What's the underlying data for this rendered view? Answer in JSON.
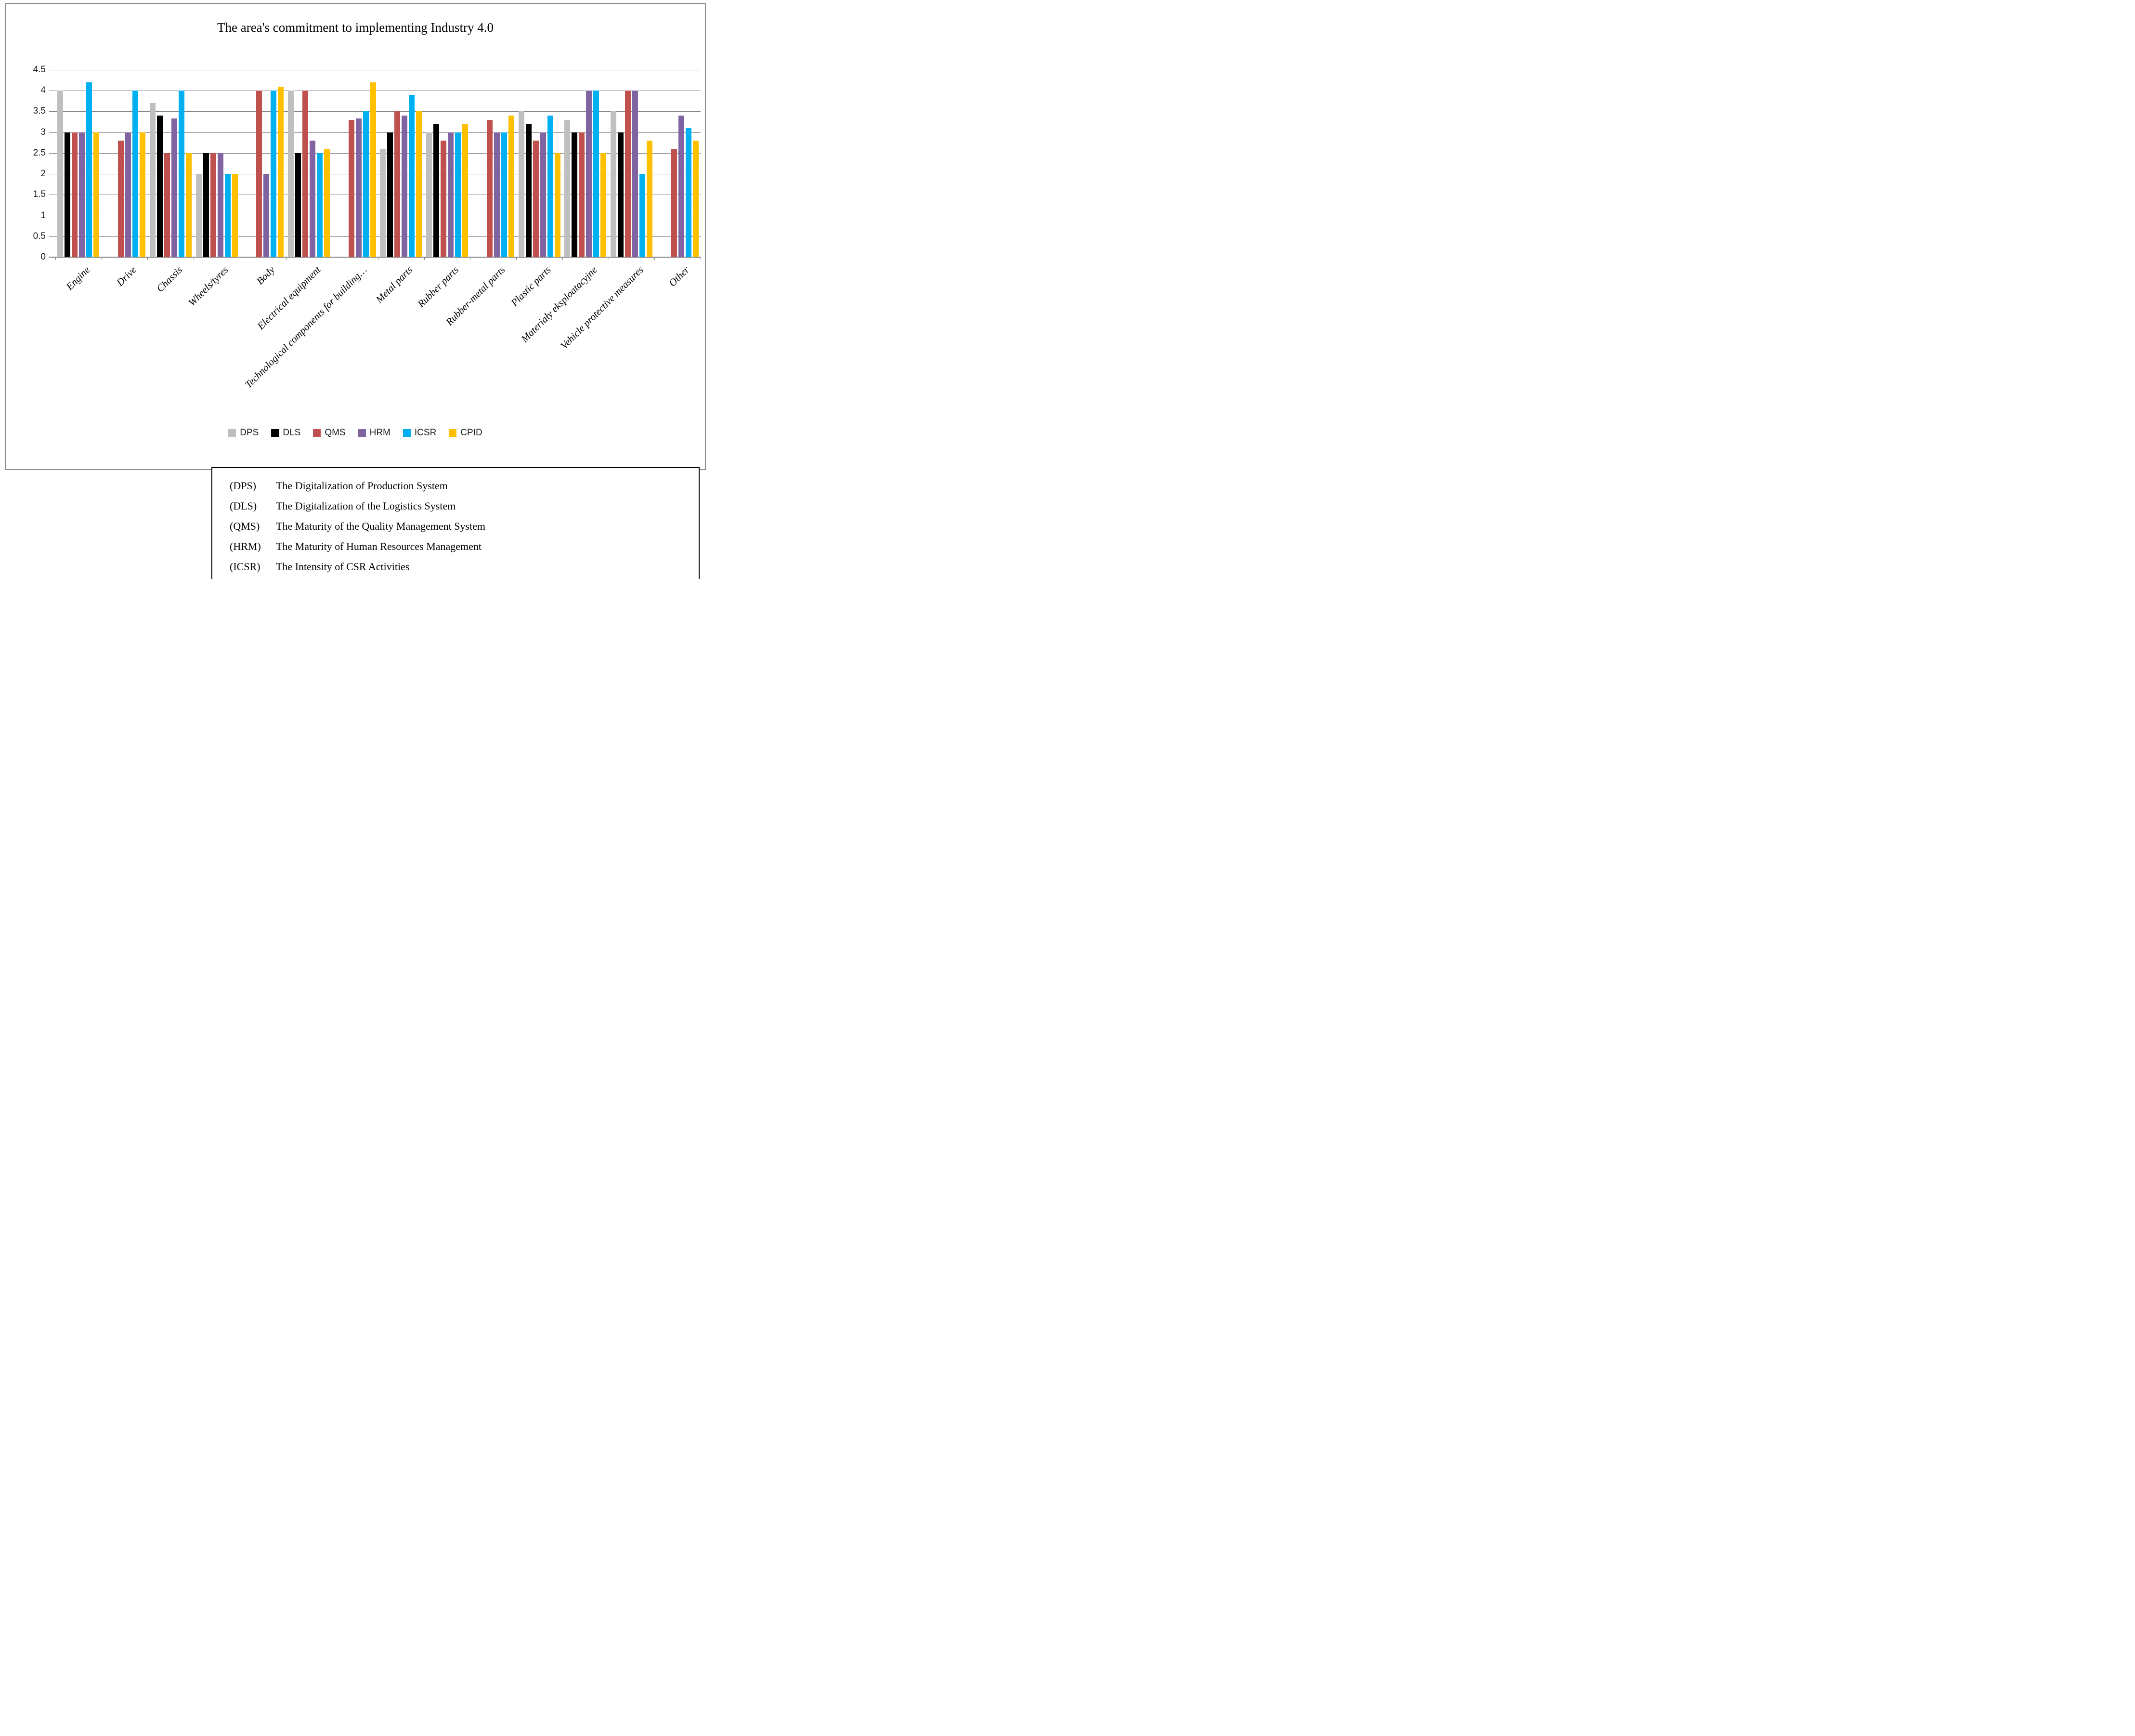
{
  "chart_data": {
    "type": "bar",
    "title": "The area's commitment to implementing Industry 4.0",
    "categories": [
      "Engine",
      "Drive",
      "Chassis",
      "Wheels/tyres",
      "Body",
      "Electrical equipment",
      "Technological components for building…",
      "Metal parts",
      "Rubber parts",
      "Rubber-metal parts",
      "Plastic parts",
      "Materiały eksploatacyjne",
      "Vehicle protective measures",
      "Other"
    ],
    "series": [
      {
        "name": "DPS",
        "color": "#bfbfbf",
        "values": [
          4,
          0,
          3.7,
          2,
          0,
          4,
          0,
          2.6,
          3,
          0,
          3.5,
          3.3,
          3.5,
          0
        ]
      },
      {
        "name": "DLS",
        "color": "#000000",
        "values": [
          3,
          0,
          3.4,
          2.5,
          0,
          2.5,
          0,
          3,
          3.2,
          0,
          3.2,
          3,
          3,
          0
        ]
      },
      {
        "name": "QMS",
        "color": "#c0504d",
        "values": [
          3,
          2.8,
          2.5,
          2.5,
          4,
          4,
          3.3,
          3.5,
          2.8,
          3.3,
          2.8,
          3,
          4,
          2.6
        ]
      },
      {
        "name": "HRM",
        "color": "#8064a2",
        "values": [
          3,
          3,
          3.33,
          2.5,
          2,
          2.8,
          3.33,
          3.4,
          3,
          3,
          3,
          4,
          4,
          3.4
        ]
      },
      {
        "name": "ICSR",
        "color": "#00b0f0",
        "values": [
          4.2,
          4,
          4,
          2,
          4,
          2.5,
          3.5,
          3.9,
          3,
          3,
          3.4,
          4,
          2,
          3.1
        ]
      },
      {
        "name": "CPID",
        "color": "#ffc000",
        "values": [
          3,
          3,
          2.5,
          2,
          4.1,
          2.6,
          4.2,
          3.5,
          3.2,
          3.4,
          2.5,
          2.5,
          2.8,
          2.8
        ]
      }
    ],
    "ylim": [
      0,
      4.5
    ],
    "ytick_step": 0.5,
    "y_tick_labels": [
      "0",
      "0.5",
      "1",
      "1.5",
      "2",
      "2.5",
      "3",
      "3.5",
      "4",
      "4.5"
    ],
    "grid": true,
    "legend_position": "bottom"
  },
  "definitions": [
    {
      "abbr": "(DPS)",
      "text": "The Digitalization of Production System"
    },
    {
      "abbr": "(DLS)",
      "text": "The Digitalization of the Logistics System"
    },
    {
      "abbr": "(QMS)",
      "text": "The Maturity of the Quality Management System"
    },
    {
      "abbr": "(HRM)",
      "text": "The Maturity of Human Resources Management"
    },
    {
      "abbr": "(ICSR)",
      "text": "The Intensity of CSR Activities"
    }
  ]
}
